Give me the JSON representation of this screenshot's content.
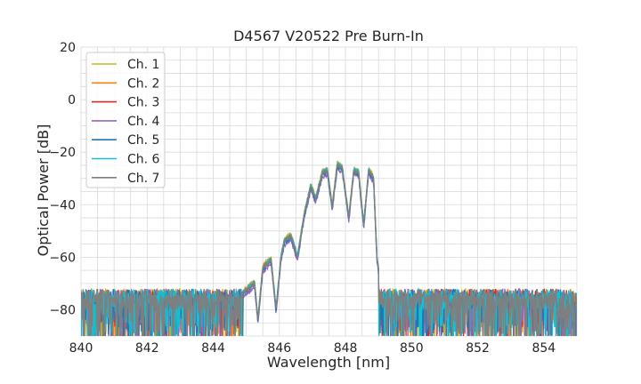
{
  "chart_data": {
    "type": "line",
    "title": "D4567 V20522 Pre Burn-In",
    "xlabel": "Wavelength [nm]",
    "ylabel": "Optical Power [dB]",
    "xlim": [
      840,
      855
    ],
    "ylim": [
      -90,
      20
    ],
    "xticks": [
      840,
      842,
      844,
      846,
      848,
      850,
      852,
      854
    ],
    "yticks": [
      20,
      0,
      -20,
      -40,
      -60,
      -80
    ],
    "xtick_labels": [
      "840",
      "842",
      "844",
      "846",
      "848",
      "850",
      "852",
      "854"
    ],
    "ytick_labels": [
      "20",
      "0",
      "−20",
      "−40",
      "−60",
      "−80"
    ],
    "grid": true,
    "legend_position": "top-left",
    "spectrum_envelope": {
      "x": [
        840.0,
        844.8,
        845.05,
        845.25,
        845.35,
        845.5,
        845.75,
        845.9,
        846.05,
        846.15,
        846.35,
        846.55,
        846.75,
        846.95,
        847.1,
        847.3,
        847.45,
        847.6,
        847.75,
        847.9,
        848.1,
        848.25,
        848.4,
        848.55,
        848.7,
        848.85,
        848.95,
        849.1,
        855.0
      ],
      "y": [
        -75,
        -75,
        -72,
        -70,
        -84,
        -64,
        -61,
        -80,
        -60,
        -54,
        -52,
        -60,
        -44,
        -33,
        -38,
        -28,
        -27,
        -41,
        -25,
        -26,
        -45,
        -27,
        -28,
        -48,
        -27,
        -30,
        -60,
        -75,
        -75
      ]
    },
    "series": [
      {
        "name": "Ch. 1",
        "color": "#bcbd22",
        "offset": 1.0
      },
      {
        "name": "Ch. 2",
        "color": "#ff7f0e",
        "offset": 0.5
      },
      {
        "name": "Ch. 3",
        "color": "#d62728",
        "offset": 0.0
      },
      {
        "name": "Ch. 4",
        "color": "#9467bd",
        "offset": -1.5
      },
      {
        "name": "Ch. 5",
        "color": "#1f77b4",
        "offset": -0.5
      },
      {
        "name": "Ch. 6",
        "color": "#17becf",
        "offset": 0.5
      },
      {
        "name": "Ch. 7",
        "color": "#7f7f7f",
        "offset": 0.0
      }
    ]
  }
}
